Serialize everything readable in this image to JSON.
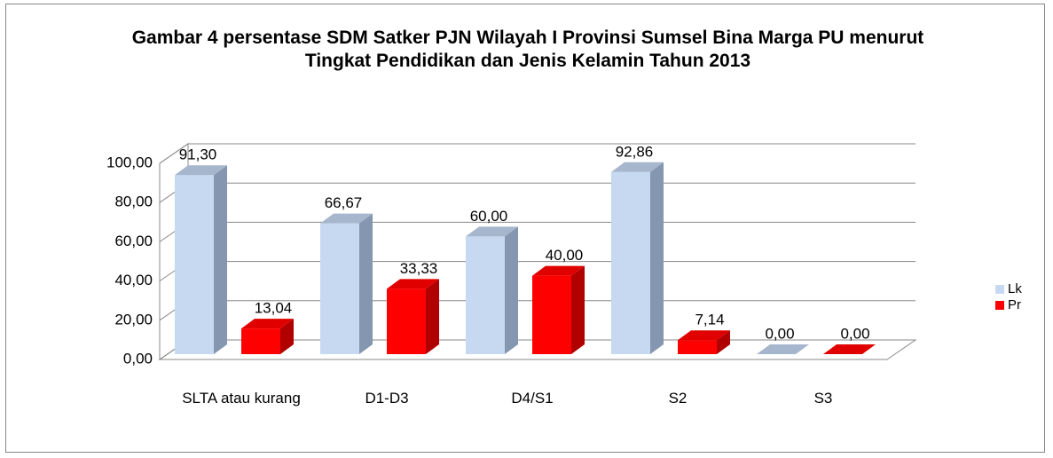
{
  "chart_data": {
    "type": "bar3d",
    "title": "Gambar 4 persentase  SDM  Satker PJN Wilayah I Provinsi Sumsel Bina Marga PU menurut Tingkat Pendidikan dan Jenis Kelamin Tahun 2013",
    "categories": [
      "SLTA atau kurang",
      "D1-D3",
      "D4/S1",
      "S2",
      "S3"
    ],
    "series": [
      {
        "name": "Lk",
        "color": "#c6d9f1",
        "values": [
          91.3,
          66.67,
          60.0,
          92.86,
          0.0
        ],
        "value_labels": [
          "91,30",
          "66,67",
          "60,00",
          "92,86",
          "0,00"
        ]
      },
      {
        "name": "Pr",
        "color": "#ff0000",
        "values": [
          13.04,
          33.33,
          40.0,
          7.14,
          0.0
        ],
        "value_labels": [
          "13,04",
          "33,33",
          "40,00",
          "7,14",
          "0,00"
        ]
      }
    ],
    "ylim": [
      0,
      100
    ],
    "yticks": [
      {
        "value": 0,
        "label": "0,00"
      },
      {
        "value": 20,
        "label": "20,00"
      },
      {
        "value": 40,
        "label": "40,00"
      },
      {
        "value": 60,
        "label": "60,00"
      },
      {
        "value": 80,
        "label": "80,00"
      },
      {
        "value": 100,
        "label": "100,00"
      }
    ],
    "grid": true,
    "legend": "right"
  }
}
